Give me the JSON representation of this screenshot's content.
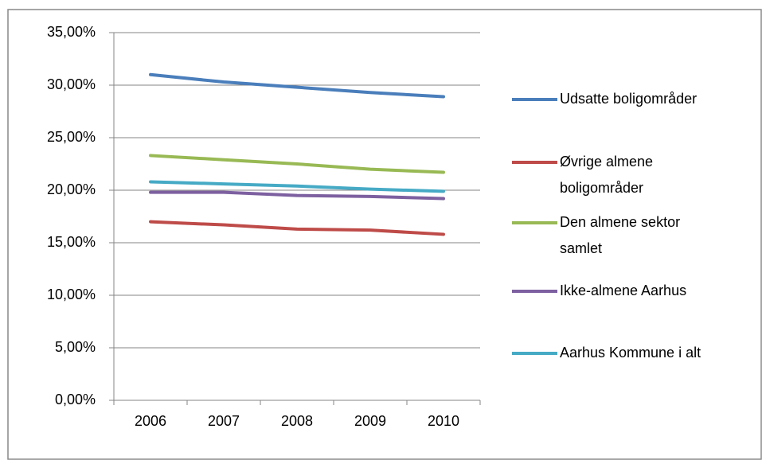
{
  "chart_data": {
    "type": "line",
    "categories": [
      "2006",
      "2007",
      "2008",
      "2009",
      "2010"
    ],
    "series": [
      {
        "name": "Udsatte boligområder",
        "color": "#4a7ebb",
        "values": [
          31.0,
          30.3,
          29.8,
          29.3,
          28.9
        ]
      },
      {
        "name": "Øvrige almene boligområder",
        "color": "#be4b48",
        "values": [
          17.0,
          16.7,
          16.3,
          16.2,
          15.8
        ]
      },
      {
        "name": "Den almene sektor samlet",
        "color": "#98b954",
        "values": [
          23.3,
          22.9,
          22.5,
          22.0,
          21.7
        ]
      },
      {
        "name": "Ikke-almene Aarhus",
        "color": "#7d60a0",
        "values": [
          19.8,
          19.8,
          19.5,
          19.4,
          19.2
        ]
      },
      {
        "name": "Aarhus Kommune i alt",
        "color": "#46aac5",
        "values": [
          20.8,
          20.6,
          20.4,
          20.1,
          19.9
        ]
      }
    ],
    "ylim": [
      0,
      35
    ],
    "yticks": [
      {
        "value": 0,
        "label": "0,00%"
      },
      {
        "value": 5,
        "label": "5,00%"
      },
      {
        "value": 10,
        "label": "10,00%"
      },
      {
        "value": 15,
        "label": "15,00%"
      },
      {
        "value": 20,
        "label": "20,00%"
      },
      {
        "value": 25,
        "label": "25,00%"
      },
      {
        "value": 30,
        "label": "30,00%"
      },
      {
        "value": 35,
        "label": "35,00%"
      }
    ],
    "grid": true,
    "legend": "right"
  }
}
